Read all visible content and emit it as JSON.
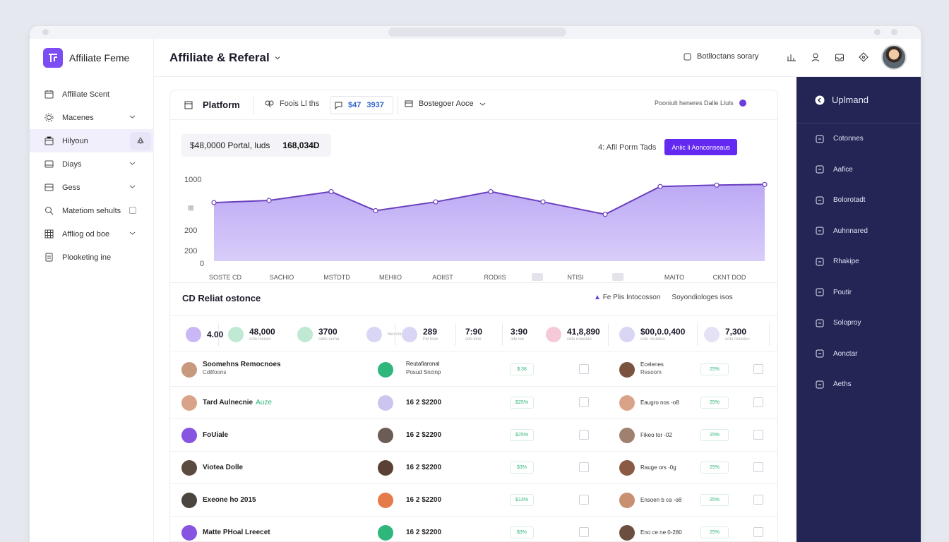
{
  "brand": {
    "name": "Affiliate Feme"
  },
  "header": {
    "title": "Affiliate & Referal",
    "search_label": "Botlloctans sorary"
  },
  "sidebar": {
    "items": [
      {
        "label": "Affiliate Scent",
        "icon": "calendar-icon"
      },
      {
        "label": "Macenes",
        "icon": "gear-icon"
      },
      {
        "label": "Hilyoun",
        "icon": "briefcase-icon"
      },
      {
        "label": "Diays",
        "icon": "card-icon"
      },
      {
        "label": "Gess",
        "icon": "wallet-icon"
      },
      {
        "label": "Matetiom sehults",
        "icon": "search-icon"
      },
      {
        "label": "Affliog od boe",
        "icon": "grid-icon"
      },
      {
        "label": "Plooketing ine",
        "icon": "document-icon"
      }
    ]
  },
  "toolbar": {
    "platform_label": "Platform",
    "filter_label": "Foois Ll ths",
    "id_label": "$47",
    "id_value": "3937",
    "select_label": "Bostegoer Aoce",
    "right_label": "Pooniult heneres Dalle Lluls"
  },
  "metrics": {
    "primary": "$48,0000 Portal, luds",
    "secondary": "168,034D"
  },
  "chart_controls": {
    "label": "Afil Porm Tads",
    "prefix": "4:",
    "button": "Aniic li Aonconseaus"
  },
  "chart_data": {
    "type": "area",
    "categories": [
      "SOSTE CD",
      "SACHIO",
      "MSTDTD",
      "MEHIIO",
      "AOIIST",
      "RODIIS",
      "NTISI",
      "MAITO",
      "CKNT DOD"
    ],
    "series": [
      {
        "values": [
          800,
          830,
          950,
          690,
          810,
          950,
          810,
          640,
          1020
        ]
      }
    ],
    "y_tick_labels": [
      "1000",
      "200",
      "200",
      "0"
    ],
    "color": "#8a63e8",
    "fill": "#b9a4f4"
  },
  "section": {
    "title": "CD Reliat ostonce",
    "right1": "Fe Plis Intocosson",
    "right2": "Soyondiologes isos"
  },
  "stats": [
    {
      "value": "4.00",
      "sub": "",
      "color": "#c9b8f5"
    },
    {
      "value": "48,000",
      "sub": "cotu lcenen",
      "color": "#bfe9d3"
    },
    {
      "value": "3700",
      "sub": "cebs ouma",
      "color": "#bfe9d3"
    },
    {
      "value": "",
      "sub": "heuicourcr",
      "color": "#d8d6f4"
    },
    {
      "value": "289",
      "sub": "Fel lnee",
      "color": "#d8d6f4"
    },
    {
      "value": "7:90",
      "sub": "sdo ione",
      "color": "#ffffff"
    },
    {
      "value": "3:90",
      "sub": "oile ioe",
      "color": "#ffffff"
    },
    {
      "value": "41,8,890",
      "sub": "cotu nouetuo",
      "color": "#f6c9d8"
    },
    {
      "value": "$00,0.0,400",
      "sub": "cotu nouetuo",
      "color": "#d8d6f4"
    },
    {
      "value": "7,300",
      "sub": "cotu nouetuo",
      "color": "#e4e2f4"
    }
  ],
  "rows": [
    {
      "name": "Soomehns Remocnoes",
      "sub": "Cdilfoons",
      "tag": "",
      "value": "Reutafiaronal",
      "value_sub": "Posud Sncinp",
      "pct": "$:38",
      "ref": "Ecelenes",
      "ref_sub": "Resoom",
      "pct2": "25%",
      "av": "#c79a7e",
      "mid": "#2fb67a",
      "av2": "#7a5240"
    },
    {
      "name": "Tard Aulnecnie",
      "sub": "",
      "tag": "Auze",
      "value": "16 2 $2200",
      "value_sub": "",
      "pct": "$25%",
      "ref": "Eaugro nos -o8",
      "ref_sub": "",
      "pct2": "25%",
      "av": "#d9a38a",
      "mid": "#cbc5ef",
      "av2": "#d9a38a"
    },
    {
      "name": "FoUiale",
      "sub": "",
      "tag": "",
      "value": "16 2 $2200",
      "value_sub": "",
      "pct": "$25%",
      "ref": "Fikeo tor -02",
      "ref_sub": "",
      "pct2": "25%",
      "av": "#8654e0",
      "mid": "#6b5d55",
      "av2": "#a08070"
    },
    {
      "name": "Viotea Dolle",
      "sub": "",
      "tag": "",
      "value": "16 2 $2200",
      "value_sub": "",
      "pct": "$3%",
      "ref": "Rauge ors -0g",
      "ref_sub": "",
      "pct2": "25%",
      "av": "#5a4a40",
      "mid": "#5a4035",
      "av2": "#8a5a45"
    },
    {
      "name": "Exeone ho 2015",
      "sub": "",
      "tag": "",
      "value": "16 2 $2200",
      "value_sub": "",
      "pct": "$13%",
      "ref": "Ensoen b ca -o8",
      "ref_sub": "",
      "pct2": "25%",
      "av": "#4b4540",
      "mid": "#e57a4a",
      "av2": "#c89070"
    },
    {
      "name": "Matte PHoal Lreecet",
      "sub": "",
      "tag": "",
      "value": "16 2 $2200",
      "value_sub": "",
      "pct": "$3%",
      "ref": "Eno ce ne 0-280",
      "ref_sub": "",
      "pct2": "25%",
      "av": "#8654e0",
      "mid": "#2fb67a",
      "av2": "#6b4e40"
    }
  ],
  "right_panel": {
    "head": "Uplmand",
    "items": [
      {
        "label": "Cotonnes",
        "icon": "bookmark-icon"
      },
      {
        "label": "Aafice",
        "icon": "building-icon"
      },
      {
        "label": "Bolorotadt",
        "icon": "chart-icon"
      },
      {
        "label": "Auhnnared",
        "icon": "home-icon"
      },
      {
        "label": "Rhakipe",
        "icon": "tag-icon"
      },
      {
        "label": "Poutir",
        "icon": "globe-icon"
      },
      {
        "label": "Soloproy",
        "icon": "image-icon"
      },
      {
        "label": "Aonctar",
        "icon": "monitor-icon"
      },
      {
        "label": "Aeths",
        "icon": "settings-icon"
      }
    ]
  }
}
